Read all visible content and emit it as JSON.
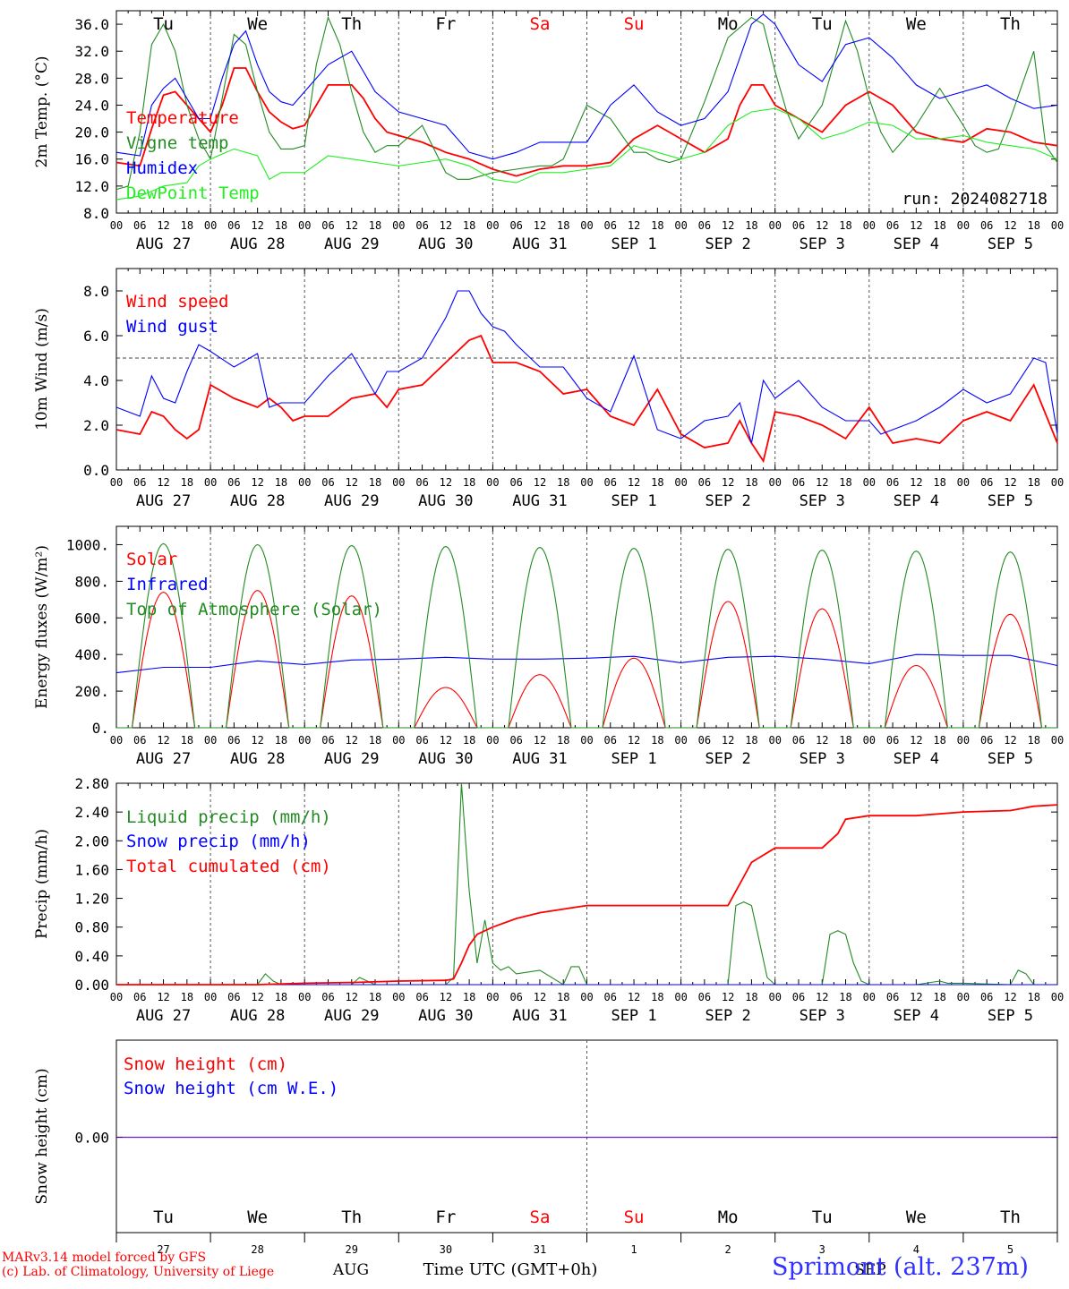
{
  "days": [
    {
      "date": "AUG 27",
      "dow": "Tu",
      "dom": "27",
      "weekend": false
    },
    {
      "date": "AUG 28",
      "dow": "We",
      "dom": "28",
      "weekend": false
    },
    {
      "date": "AUG 29",
      "dow": "Th",
      "dom": "29",
      "weekend": false
    },
    {
      "date": "AUG 30",
      "dow": "Fr",
      "dom": "30",
      "weekend": false
    },
    {
      "date": "AUG 31",
      "dow": "Sa",
      "dom": "31",
      "weekend": true
    },
    {
      "date": "SEP  1",
      "dow": "Su",
      "dom": "1",
      "weekend": true
    },
    {
      "date": "SEP  2",
      "dow": "Mo",
      "dom": "2",
      "weekend": false
    },
    {
      "date": "SEP  3",
      "dow": "Tu",
      "dom": "3",
      "weekend": false
    },
    {
      "date": "SEP  4",
      "dow": "We",
      "dom": "4",
      "weekend": false
    },
    {
      "date": "SEP  5",
      "dow": "Th",
      "dom": "5",
      "weekend": false
    }
  ],
  "hour_ticks": [
    "00",
    "06",
    "12",
    "18"
  ],
  "footer": {
    "model_line1": "MARv3.14 model forced by GFS",
    "model_line2": "(c) Lab. of Climatology, University of Liege",
    "month_aug": "AUG",
    "month_sep": "SEP",
    "xlabel": "Time UTC (GMT+0h)",
    "station": "Sprimont (alt. 237m)"
  },
  "chart_data": [
    {
      "type": "line",
      "ylabel": "2m Temp. (°C)",
      "ylim": [
        8,
        38
      ],
      "yticks": [
        8,
        12,
        16,
        20,
        24,
        28,
        32,
        36
      ],
      "tick_decimals": 1,
      "run_label": "run: 2024082718",
      "x_unit": "hours since 2024-08-27 00 UTC",
      "series": [
        {
          "name": "Temperature",
          "color": "#ff0000",
          "x": [
            0,
            6,
            9,
            12,
            15,
            18,
            21,
            24,
            27,
            30,
            33,
            36,
            39,
            42,
            45,
            48,
            54,
            60,
            63,
            66,
            69,
            72,
            78,
            84,
            90,
            96,
            102,
            108,
            114,
            120,
            126,
            132,
            138,
            144,
            150,
            156,
            159,
            162,
            165,
            168,
            174,
            180,
            186,
            192,
            198,
            204,
            210,
            216,
            222,
            228,
            234,
            240
          ],
          "y": [
            15.5,
            15,
            20.5,
            25.5,
            26,
            24,
            22,
            20,
            24,
            29.5,
            29.5,
            26,
            23,
            21.5,
            20.5,
            21,
            27,
            27,
            25,
            22,
            20,
            19.5,
            18.5,
            17,
            16,
            14.5,
            13.5,
            14.5,
            15,
            15,
            15.5,
            19,
            21,
            19,
            17,
            19,
            24,
            27,
            27,
            24,
            22,
            20,
            24,
            26,
            24,
            20,
            19,
            18.5,
            20.5,
            20,
            18.5,
            18
          ]
        },
        {
          "name": "Vigne temp",
          "color": "#228B22",
          "x": [
            0,
            3,
            6,
            9,
            12,
            15,
            18,
            21,
            24,
            27,
            30,
            33,
            36,
            39,
            42,
            45,
            48,
            51,
            54,
            57,
            60,
            63,
            66,
            69,
            72,
            78,
            84,
            87,
            90,
            96,
            102,
            108,
            111,
            114,
            120,
            126,
            132,
            135,
            138,
            141,
            144,
            150,
            156,
            162,
            165,
            168,
            171,
            174,
            180,
            186,
            189,
            192,
            195,
            198,
            201,
            204,
            210,
            216,
            219,
            222,
            225,
            228,
            234,
            237,
            240
          ],
          "y": [
            11.5,
            12,
            20,
            33,
            36,
            32,
            24,
            19,
            16,
            25,
            34.5,
            33,
            26,
            20,
            17.5,
            17.5,
            18,
            30,
            37,
            33,
            26,
            20,
            17,
            18,
            18,
            21,
            14,
            13,
            13,
            14,
            14.5,
            15,
            15,
            16,
            24,
            22,
            17,
            17,
            16,
            15.5,
            16,
            24.5,
            34,
            37,
            36,
            29,
            23,
            19,
            24,
            36.5,
            32,
            25,
            20,
            17,
            19,
            21,
            26.5,
            21,
            18,
            17,
            17.5,
            22,
            32,
            18,
            15.5
          ]
        },
        {
          "name": "Humidex",
          "color": "#0000ff",
          "x": [
            0,
            6,
            9,
            12,
            15,
            18,
            21,
            24,
            27,
            30,
            33,
            36,
            39,
            42,
            45,
            48,
            54,
            60,
            66,
            72,
            78,
            84,
            90,
            96,
            102,
            108,
            114,
            120,
            126,
            132,
            138,
            144,
            150,
            156,
            162,
            165,
            168,
            174,
            180,
            186,
            192,
            198,
            204,
            210,
            216,
            222,
            228,
            234,
            240
          ],
          "y": [
            17,
            16.5,
            24,
            26.5,
            28,
            25,
            22,
            22,
            28,
            33,
            35,
            30,
            26,
            24.5,
            24,
            26,
            30,
            32,
            26,
            23,
            22,
            21,
            17,
            16,
            17,
            18.5,
            18.5,
            18.5,
            24,
            27,
            23,
            21,
            22,
            26,
            36,
            37.5,
            36,
            30,
            27.5,
            33,
            34,
            31,
            27,
            25,
            26,
            27,
            25,
            23.5,
            24
          ]
        },
        {
          "name": "DewPoint Temp",
          "color": "#22ee22",
          "x": [
            0,
            6,
            12,
            18,
            21,
            24,
            30,
            36,
            39,
            42,
            48,
            54,
            60,
            66,
            72,
            78,
            84,
            90,
            96,
            102,
            108,
            114,
            120,
            126,
            132,
            138,
            144,
            150,
            156,
            162,
            168,
            174,
            180,
            186,
            192,
            198,
            204,
            210,
            216,
            222,
            228,
            234,
            240
          ],
          "y": [
            10,
            10.5,
            12,
            12.5,
            15,
            16,
            17.5,
            16.5,
            13,
            14,
            14,
            16.5,
            16,
            15.5,
            15,
            15.5,
            16,
            15,
            13,
            12.5,
            14,
            14,
            14.5,
            15,
            18,
            17,
            16,
            17,
            21,
            23,
            23.5,
            22,
            19,
            20,
            21.5,
            21,
            19,
            19,
            19.5,
            18.5,
            18,
            17.5,
            16
          ]
        }
      ]
    },
    {
      "type": "line",
      "ylabel": "10m Wind (m/s)",
      "ylim": [
        0,
        9
      ],
      "yticks": [
        0,
        2,
        4,
        6,
        8
      ],
      "tick_decimals": 1,
      "ref_line": 5,
      "series": [
        {
          "name": "Wind speed",
          "color": "#ff0000",
          "x": [
            0,
            6,
            9,
            12,
            15,
            18,
            21,
            24,
            30,
            36,
            39,
            42,
            45,
            48,
            54,
            60,
            66,
            69,
            72,
            78,
            84,
            90,
            93,
            96,
            99,
            102,
            108,
            114,
            120,
            126,
            132,
            138,
            144,
            150,
            156,
            159,
            162,
            165,
            168,
            174,
            180,
            186,
            192,
            195,
            198,
            204,
            210,
            216,
            222,
            228,
            234,
            240
          ],
          "y": [
            1.8,
            1.6,
            2.6,
            2.4,
            1.8,
            1.4,
            1.8,
            3.8,
            3.2,
            2.8,
            3.2,
            2.8,
            2.2,
            2.4,
            2.4,
            3.2,
            3.4,
            2.8,
            3.6,
            3.8,
            4.8,
            5.8,
            6,
            4.8,
            4.8,
            4.8,
            4.4,
            3.4,
            3.6,
            2.4,
            2,
            3.6,
            1.6,
            1,
            1.2,
            2.2,
            1.2,
            0.4,
            2.6,
            2.4,
            2,
            1.4,
            2.8,
            2,
            1.2,
            1.4,
            1.2,
            2.2,
            2.6,
            2.2,
            3.8,
            1.2
          ]
        },
        {
          "name": "Wind gust",
          "color": "#0000ff",
          "x": [
            0,
            6,
            9,
            12,
            15,
            18,
            21,
            24,
            30,
            36,
            39,
            42,
            45,
            48,
            54,
            60,
            66,
            69,
            72,
            78,
            84,
            87,
            90,
            93,
            96,
            99,
            102,
            108,
            114,
            120,
            126,
            132,
            138,
            144,
            150,
            156,
            159,
            162,
            165,
            168,
            174,
            180,
            186,
            192,
            195,
            198,
            204,
            210,
            216,
            222,
            228,
            234,
            237,
            240
          ],
          "y": [
            2.8,
            2.4,
            4.2,
            3.2,
            3,
            4.4,
            5.6,
            5.3,
            4.6,
            5.2,
            2.8,
            3,
            3,
            3,
            4.2,
            5.2,
            3.4,
            4.4,
            4.4,
            5,
            6.8,
            8,
            8,
            7,
            6.4,
            6.2,
            5.6,
            4.6,
            4.6,
            3.2,
            2.6,
            5.1,
            1.8,
            1.4,
            2.2,
            2.4,
            3,
            1.2,
            4,
            3.2,
            4,
            2.8,
            2.2,
            2.2,
            1.6,
            1.8,
            2.2,
            2.8,
            3.6,
            3,
            3.4,
            5,
            4.8,
            1.6
          ]
        }
      ]
    },
    {
      "type": "line",
      "ylabel": "Energy fluxes (W/m²)",
      "ylim": [
        0,
        1100
      ],
      "yticks": [
        0,
        200,
        400,
        600,
        800,
        1000
      ],
      "tick_decimals": 0,
      "diurnal": {
        "sunrise_h": 4,
        "sunset_h": 20
      },
      "series": [
        {
          "name": "Solar",
          "color": "#ff0000",
          "daily_peaks": [
            740,
            750,
            720,
            220,
            290,
            380,
            690,
            650,
            340,
            620
          ]
        },
        {
          "name": "Infrared",
          "color": "#0000ff",
          "x": [
            0,
            12,
            24,
            36,
            48,
            60,
            72,
            84,
            96,
            108,
            120,
            132,
            144,
            156,
            168,
            180,
            192,
            204,
            216,
            228,
            240
          ],
          "y": [
            300,
            330,
            330,
            365,
            345,
            370,
            375,
            385,
            375,
            375,
            380,
            390,
            355,
            385,
            390,
            375,
            350,
            400,
            395,
            395,
            340
          ]
        },
        {
          "name": "Top of Atmosphere (Solar)",
          "color": "#228B22",
          "daily_peaks": [
            1005,
            1000,
            995,
            990,
            985,
            980,
            975,
            970,
            965,
            960
          ]
        }
      ]
    },
    {
      "type": "line",
      "ylabel": "Precip (mm/h)",
      "ylim": [
        0,
        2.8
      ],
      "yticks": [
        0,
        0.4,
        0.8,
        1.2,
        1.6,
        2.0,
        2.4,
        2.8
      ],
      "tick_decimals": 2,
      "series": [
        {
          "name": "Liquid precip (mm/h)",
          "color": "#228B22",
          "x": [
            0,
            36,
            38,
            40,
            42,
            44,
            60,
            62,
            64,
            66,
            84,
            86,
            88,
            90,
            92,
            94,
            96,
            98,
            100,
            102,
            108,
            114,
            116,
            118,
            120,
            156,
            158,
            160,
            162,
            164,
            166,
            168,
            180,
            182,
            184,
            186,
            188,
            190,
            192,
            204,
            210,
            212,
            216,
            228,
            230,
            232,
            234,
            240
          ],
          "y": [
            0,
            0,
            0.15,
            0.05,
            0,
            0,
            0,
            0.1,
            0.05,
            0,
            0,
            0.1,
            2.8,
            1.3,
            0.3,
            0.9,
            0.3,
            0.2,
            0.25,
            0.15,
            0.2,
            0,
            0.25,
            0.25,
            0,
            0,
            1.1,
            1.15,
            1.1,
            0.6,
            0.1,
            0,
            0,
            0.7,
            0.75,
            0.7,
            0.3,
            0.05,
            0,
            0,
            0.05,
            0.02,
            0.02,
            0,
            0.2,
            0.15,
            0,
            0
          ]
        },
        {
          "name": "Snow precip (mm/h)",
          "color": "#0000ff",
          "x": [
            0,
            240
          ],
          "y": [
            0,
            0
          ]
        },
        {
          "name": "Total cumulated (cm)",
          "color": "#ff0000",
          "x": [
            0,
            36,
            48,
            60,
            72,
            84,
            86,
            88,
            90,
            92,
            96,
            102,
            108,
            114,
            120,
            126,
            132,
            144,
            156,
            160,
            162,
            168,
            174,
            180,
            184,
            186,
            192,
            204,
            216,
            228,
            234,
            240
          ],
          "y": [
            0,
            0,
            0.02,
            0.03,
            0.05,
            0.06,
            0.08,
            0.3,
            0.55,
            0.7,
            0.8,
            0.92,
            1.0,
            1.05,
            1.1,
            1.1,
            1.1,
            1.1,
            1.1,
            1.5,
            1.7,
            1.9,
            1.9,
            1.9,
            2.1,
            2.3,
            2.35,
            2.35,
            2.4,
            2.42,
            2.48,
            2.5
          ]
        }
      ]
    },
    {
      "type": "line",
      "ylabel": "Snow height (cm)",
      "yticks": [
        0
      ],
      "tick_decimals": 2,
      "series": [
        {
          "name": "Snow height (cm)",
          "color": "#ff0000",
          "x": [
            0,
            240
          ],
          "y": [
            0,
            0
          ]
        },
        {
          "name": "Snow height (cm W.E.)",
          "color": "#0000ff",
          "x": [
            0,
            240
          ],
          "y": [
            0,
            0
          ]
        }
      ]
    }
  ]
}
